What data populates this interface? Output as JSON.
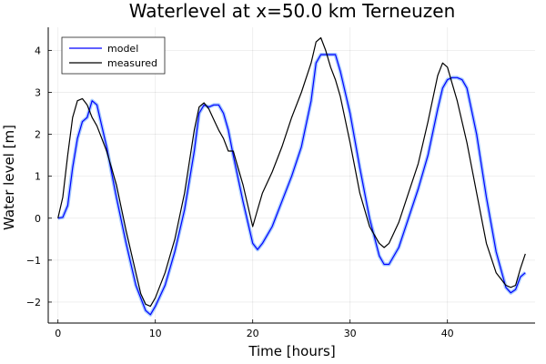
{
  "chart_data": {
    "type": "line",
    "title": "Waterlevel at x=50.0 km Terneuzen",
    "xlabel": "Time [hours]",
    "ylabel": "Water level [m]",
    "xlim": [
      -1,
      49
    ],
    "ylim": [
      -2.5,
      4.55
    ],
    "xticks": [
      0,
      10,
      20,
      30,
      40
    ],
    "xtick_labels": [
      "0",
      "10",
      "20",
      "30",
      "40"
    ],
    "yticks": [
      -2,
      -1,
      0,
      1,
      2,
      3,
      4
    ],
    "ytick_labels": [
      "−2",
      "−1",
      "0",
      "1",
      "2",
      "3",
      "4"
    ],
    "grid": true,
    "legend": "top-left",
    "series": [
      {
        "name": "model",
        "color": "#0000ff",
        "band_color": "#3c8cff",
        "x": [
          0,
          0.5,
          1,
          1.5,
          2,
          2.5,
          3,
          3.5,
          4,
          4.5,
          5,
          5.5,
          6,
          7,
          8,
          9,
          9.5,
          10,
          11,
          12,
          13,
          14,
          14.5,
          15,
          15.5,
          16,
          16.5,
          17,
          17.5,
          18,
          19,
          20,
          20.5,
          21,
          22,
          23,
          24,
          25,
          26,
          26.5,
          27,
          27.5,
          28,
          28.5,
          29,
          30,
          31,
          32,
          33,
          33.5,
          34,
          35,
          36,
          37,
          38,
          39,
          39.5,
          40,
          40.5,
          41,
          41.5,
          42,
          43,
          44,
          45,
          46,
          46.5,
          47,
          47.5,
          48
        ],
        "y": [
          0,
          0.02,
          0.3,
          1.2,
          1.9,
          2.3,
          2.4,
          2.8,
          2.7,
          2.2,
          1.7,
          1.1,
          0.5,
          -0.6,
          -1.6,
          -2.2,
          -2.3,
          -2.1,
          -1.6,
          -0.8,
          0.2,
          1.6,
          2.5,
          2.7,
          2.65,
          2.7,
          2.7,
          2.5,
          2.1,
          1.5,
          0.4,
          -0.6,
          -0.75,
          -0.6,
          -0.2,
          0.4,
          1.0,
          1.7,
          2.8,
          3.7,
          3.9,
          3.9,
          3.9,
          3.9,
          3.5,
          2.5,
          1.2,
          0.0,
          -0.9,
          -1.1,
          -1.1,
          -0.7,
          0.0,
          0.7,
          1.5,
          2.6,
          3.1,
          3.3,
          3.35,
          3.35,
          3.3,
          3.1,
          2.0,
          0.5,
          -0.8,
          -1.65,
          -1.78,
          -1.7,
          -1.4,
          -1.3
        ]
      },
      {
        "name": "measured",
        "color": "#000000",
        "x": [
          0,
          0.5,
          1,
          1.5,
          2,
          2.5,
          3,
          3.5,
          4,
          5,
          6,
          7,
          8,
          8.5,
          9,
          9.5,
          10,
          11,
          12,
          13,
          14,
          14.5,
          15,
          15.5,
          16,
          16.5,
          17,
          17.5,
          18,
          19,
          20,
          20.5,
          21,
          22,
          23,
          24,
          25,
          26,
          26.5,
          27,
          27.5,
          28,
          28.5,
          29,
          30,
          31,
          32,
          33,
          33.5,
          34,
          35,
          36,
          37,
          38,
          39,
          39.5,
          40,
          40.5,
          41,
          42,
          43,
          44,
          45,
          46,
          46.5,
          47,
          47.5,
          48
        ],
        "y": [
          0,
          0.5,
          1.5,
          2.4,
          2.8,
          2.85,
          2.7,
          2.4,
          2.2,
          1.6,
          0.8,
          -0.3,
          -1.3,
          -1.8,
          -2.05,
          -2.1,
          -1.9,
          -1.3,
          -0.5,
          0.6,
          2.1,
          2.65,
          2.75,
          2.6,
          2.35,
          2.1,
          1.9,
          1.6,
          1.6,
          0.8,
          -0.2,
          0.2,
          0.6,
          1.1,
          1.7,
          2.4,
          3.0,
          3.7,
          4.2,
          4.3,
          4.0,
          3.6,
          3.3,
          2.9,
          1.8,
          0.6,
          -0.2,
          -0.6,
          -0.7,
          -0.6,
          -0.1,
          0.6,
          1.3,
          2.3,
          3.4,
          3.7,
          3.6,
          3.2,
          2.8,
          1.8,
          0.6,
          -0.6,
          -1.3,
          -1.6,
          -1.65,
          -1.6,
          -1.2,
          -0.85
        ]
      }
    ]
  }
}
